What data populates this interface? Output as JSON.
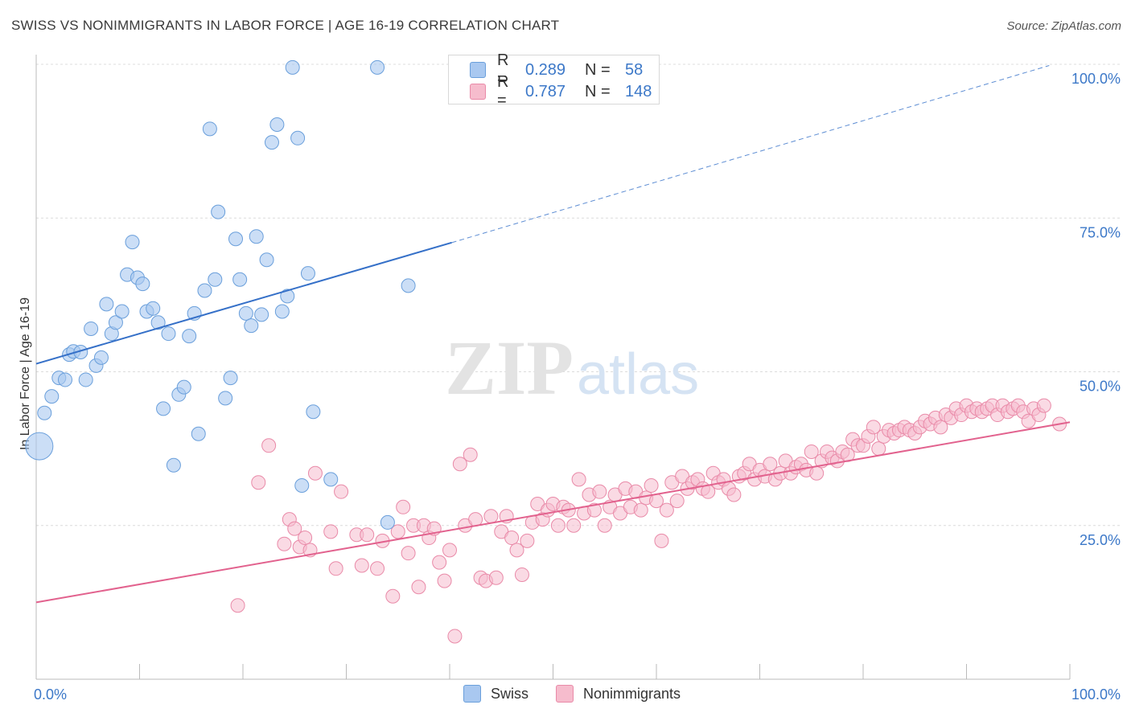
{
  "header": {
    "title": "SWISS VS NONIMMIGRANTS IN LABOR FORCE | AGE 16-19 CORRELATION CHART",
    "source": "Source: ZipAtlas.com"
  },
  "watermark": {
    "zip": "ZIP",
    "atlas": "atlas"
  },
  "legend": {
    "swiss": {
      "r_label": "R =",
      "r_value": "0.289",
      "n_label": "N =",
      "n_value": "58"
    },
    "nonimmigrants": {
      "r_label": "R =",
      "r_value": "0.787",
      "n_label": "N =",
      "n_value": "148"
    }
  },
  "chart_data": {
    "type": "scatter",
    "title": "SWISS VS NONIMMIGRANTS IN LABOR FORCE | AGE 16-19 CORRELATION CHART",
    "xlabel": "",
    "ylabel": "In Labor Force | Age 16-19",
    "xlim": [
      0,
      100
    ],
    "ylim": [
      0,
      100
    ],
    "x_tick_labels": [
      "0.0%",
      "100.0%"
    ],
    "y_tick_labels": [
      "25.0%",
      "50.0%",
      "75.0%",
      "100.0%"
    ],
    "y_ticks": [
      25,
      50,
      75,
      100
    ],
    "grid": true,
    "legend_position": "top-center",
    "colors": {
      "swiss_fill": "#a9c8f0",
      "swiss_stroke": "#6a9fdb",
      "swiss_line": "#3570c8",
      "non_fill": "#f6bccd",
      "non_stroke": "#e98aa8",
      "non_line": "#e2628e",
      "tick_label": "#3c78c8"
    },
    "series": [
      {
        "name": "Swiss",
        "points": [
          [
            0.3,
            37.9
          ],
          [
            0.8,
            43.3
          ],
          [
            1.5,
            46.0
          ],
          [
            2.2,
            49.0
          ],
          [
            2.8,
            48.7
          ],
          [
            3.2,
            52.8
          ],
          [
            3.6,
            53.3
          ],
          [
            4.3,
            53.2
          ],
          [
            4.8,
            48.7
          ],
          [
            5.3,
            57.0
          ],
          [
            5.8,
            51.0
          ],
          [
            6.3,
            52.3
          ],
          [
            6.8,
            61.0
          ],
          [
            7.3,
            56.2
          ],
          [
            7.7,
            58.0
          ],
          [
            8.3,
            59.8
          ],
          [
            8.8,
            65.8
          ],
          [
            9.3,
            71.1
          ],
          [
            9.8,
            65.3
          ],
          [
            10.3,
            64.3
          ],
          [
            10.7,
            59.8
          ],
          [
            11.3,
            60.3
          ],
          [
            11.8,
            58.0
          ],
          [
            12.3,
            44.0
          ],
          [
            12.8,
            56.2
          ],
          [
            13.3,
            34.8
          ],
          [
            13.8,
            46.3
          ],
          [
            14.3,
            47.5
          ],
          [
            14.8,
            55.8
          ],
          [
            15.3,
            59.5
          ],
          [
            15.7,
            39.9
          ],
          [
            16.3,
            63.2
          ],
          [
            16.8,
            89.5
          ],
          [
            17.3,
            65.0
          ],
          [
            17.6,
            76.0
          ],
          [
            18.3,
            45.7
          ],
          [
            18.8,
            49.0
          ],
          [
            19.3,
            71.6
          ],
          [
            19.7,
            65.0
          ],
          [
            20.3,
            59.5
          ],
          [
            20.8,
            57.5
          ],
          [
            21.3,
            72.0
          ],
          [
            21.8,
            59.3
          ],
          [
            22.3,
            68.2
          ],
          [
            22.8,
            87.3
          ],
          [
            23.3,
            90.2
          ],
          [
            23.8,
            59.8
          ],
          [
            24.3,
            62.3
          ],
          [
            24.8,
            99.5
          ],
          [
            25.3,
            88.0
          ],
          [
            25.7,
            31.5
          ],
          [
            26.3,
            66.0
          ],
          [
            26.8,
            43.5
          ],
          [
            28.5,
            32.5
          ],
          [
            33.0,
            99.5
          ],
          [
            34.0,
            25.5
          ],
          [
            36.0,
            64.0
          ]
        ],
        "trend": {
          "x": [
            0,
            40.2
          ],
          "y": [
            51.3,
            71.0
          ]
        },
        "trend_projection": {
          "x": [
            40.2,
            98
          ],
          "y": [
            71.0,
            99.8
          ]
        }
      },
      {
        "name": "Nonimmigrants",
        "points": [
          [
            19.5,
            12.0
          ],
          [
            21.5,
            32.0
          ],
          [
            22.5,
            38.0
          ],
          [
            24.0,
            22.0
          ],
          [
            24.5,
            26.0
          ],
          [
            25.0,
            24.5
          ],
          [
            25.5,
            21.5
          ],
          [
            26.0,
            23.0
          ],
          [
            26.5,
            21.0
          ],
          [
            27.0,
            33.5
          ],
          [
            28.5,
            24.0
          ],
          [
            29.0,
            18.0
          ],
          [
            29.5,
            30.5
          ],
          [
            31.0,
            23.5
          ],
          [
            31.5,
            18.5
          ],
          [
            32.0,
            23.5
          ],
          [
            33.0,
            18.0
          ],
          [
            33.5,
            22.5
          ],
          [
            34.5,
            13.5
          ],
          [
            35.0,
            24.0
          ],
          [
            35.5,
            28.0
          ],
          [
            36.0,
            20.5
          ],
          [
            36.5,
            25.0
          ],
          [
            37.0,
            15.0
          ],
          [
            37.5,
            25.0
          ],
          [
            38.0,
            23.0
          ],
          [
            38.5,
            24.5
          ],
          [
            39.0,
            19.0
          ],
          [
            39.5,
            16.0
          ],
          [
            40.0,
            21.0
          ],
          [
            40.5,
            7.0
          ],
          [
            41.0,
            35.0
          ],
          [
            41.5,
            25.0
          ],
          [
            42.0,
            36.5
          ],
          [
            42.5,
            26.0
          ],
          [
            43.0,
            16.5
          ],
          [
            43.5,
            16.0
          ],
          [
            44.0,
            26.5
          ],
          [
            44.5,
            16.5
          ],
          [
            45.0,
            24.0
          ],
          [
            45.5,
            26.5
          ],
          [
            46.0,
            23.0
          ],
          [
            46.5,
            21.0
          ],
          [
            47.0,
            17.0
          ],
          [
            47.5,
            22.5
          ],
          [
            48.0,
            25.5
          ],
          [
            48.5,
            28.5
          ],
          [
            49.0,
            26.0
          ],
          [
            49.5,
            27.5
          ],
          [
            50.0,
            28.5
          ],
          [
            50.5,
            25.0
          ],
          [
            51.0,
            28.0
          ],
          [
            51.5,
            27.5
          ],
          [
            52.0,
            25.0
          ],
          [
            52.5,
            32.5
          ],
          [
            53.0,
            27.0
          ],
          [
            53.5,
            30.0
          ],
          [
            54.0,
            27.5
          ],
          [
            54.5,
            30.5
          ],
          [
            55.0,
            25.0
          ],
          [
            55.5,
            28.0
          ],
          [
            56.0,
            30.0
          ],
          [
            56.5,
            27.0
          ],
          [
            57.0,
            31.0
          ],
          [
            57.5,
            28.0
          ],
          [
            58.0,
            30.5
          ],
          [
            58.5,
            27.5
          ],
          [
            59.0,
            29.5
          ],
          [
            59.5,
            31.5
          ],
          [
            60.0,
            29.0
          ],
          [
            60.5,
            22.5
          ],
          [
            61.0,
            27.5
          ],
          [
            61.5,
            32.0
          ],
          [
            62.0,
            29.0
          ],
          [
            62.5,
            33.0
          ],
          [
            63.0,
            31.0
          ],
          [
            63.5,
            32.0
          ],
          [
            64.0,
            32.5
          ],
          [
            64.5,
            31.0
          ],
          [
            65.0,
            30.5
          ],
          [
            65.5,
            33.5
          ],
          [
            66.0,
            32.0
          ],
          [
            66.5,
            32.5
          ],
          [
            67.0,
            31.0
          ],
          [
            67.5,
            30.0
          ],
          [
            68.0,
            33.0
          ],
          [
            68.5,
            33.5
          ],
          [
            69.0,
            35.0
          ],
          [
            69.5,
            32.5
          ],
          [
            70.0,
            34.0
          ],
          [
            70.5,
            33.0
          ],
          [
            71.0,
            35.0
          ],
          [
            71.5,
            32.5
          ],
          [
            72.0,
            33.5
          ],
          [
            72.5,
            35.5
          ],
          [
            73.0,
            33.5
          ],
          [
            73.5,
            34.5
          ],
          [
            74.0,
            35.0
          ],
          [
            74.5,
            34.0
          ],
          [
            75.0,
            37.0
          ],
          [
            75.5,
            33.5
          ],
          [
            76.0,
            35.5
          ],
          [
            76.5,
            37.0
          ],
          [
            77.0,
            36.0
          ],
          [
            77.5,
            35.5
          ],
          [
            78.0,
            37.0
          ],
          [
            78.5,
            36.5
          ],
          [
            79.0,
            39.0
          ],
          [
            79.5,
            38.0
          ],
          [
            80.0,
            38.0
          ],
          [
            80.5,
            39.5
          ],
          [
            81.0,
            41.0
          ],
          [
            81.5,
            37.5
          ],
          [
            82.0,
            39.5
          ],
          [
            82.5,
            40.5
          ],
          [
            83.0,
            40.0
          ],
          [
            83.5,
            40.5
          ],
          [
            84.0,
            41.0
          ],
          [
            84.5,
            40.5
          ],
          [
            85.0,
            40.0
          ],
          [
            85.5,
            41.0
          ],
          [
            86.0,
            42.0
          ],
          [
            86.5,
            41.5
          ],
          [
            87.0,
            42.5
          ],
          [
            87.5,
            41.0
          ],
          [
            88.0,
            43.0
          ],
          [
            88.5,
            42.5
          ],
          [
            89.0,
            44.0
          ],
          [
            89.5,
            43.0
          ],
          [
            90.0,
            44.5
          ],
          [
            90.5,
            43.5
          ],
          [
            91.0,
            44.0
          ],
          [
            91.5,
            43.5
          ],
          [
            92.0,
            44.0
          ],
          [
            92.5,
            44.5
          ],
          [
            93.0,
            43.0
          ],
          [
            93.5,
            44.5
          ],
          [
            94.0,
            43.5
          ],
          [
            94.5,
            44.0
          ],
          [
            95.0,
            44.5
          ],
          [
            95.5,
            43.5
          ],
          [
            96.0,
            42.0
          ],
          [
            96.5,
            44.0
          ],
          [
            97.0,
            43.0
          ],
          [
            97.5,
            44.5
          ],
          [
            99.0,
            41.5
          ]
        ],
        "trend": {
          "x": [
            0,
            100
          ],
          "y": [
            12.5,
            41.8
          ]
        }
      }
    ]
  },
  "bottom_legend": {
    "swiss": "Swiss",
    "nonimmigrants": "Nonimmigrants"
  }
}
